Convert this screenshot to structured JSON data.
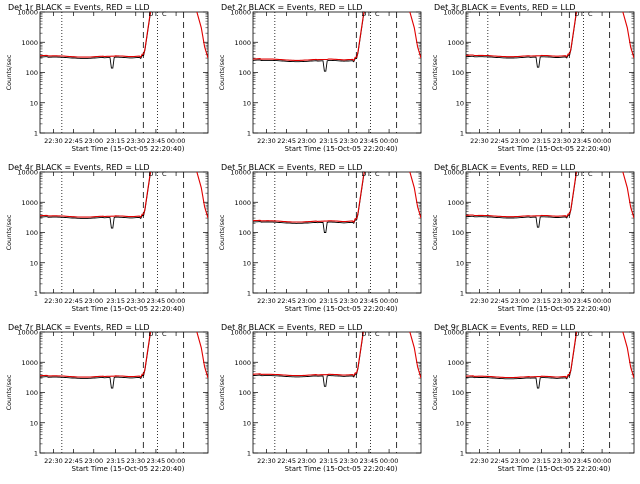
{
  "chart_data": [
    {
      "type": "line",
      "title": "Det 1r  BLACK = Events, RED = LLD",
      "xlabel": "Start Time (15-Oct-05 22:20:40)",
      "ylabel": "Counts/sec",
      "yscale": "log",
      "ylim": [
        1,
        10000
      ],
      "y_ticks": [
        "1",
        "10",
        "100",
        "1000",
        "10000"
      ],
      "x_ticks": [
        "22:30",
        "22:45",
        "23:00",
        "23:15",
        "23:30",
        "23:45",
        "00:00"
      ],
      "series": [
        {
          "color": "#000000"
        },
        {
          "color": "#e00000"
        }
      ],
      "annotations": [
        "D",
        "C"
      ],
      "base": 320,
      "dip": 140,
      "rise": 380
    },
    {
      "type": "line",
      "title": "Det 2r  BLACK = Events, RED = LLD",
      "xlabel": "Start Time (15-Oct-05 22:20:40)",
      "ylabel": "Counts/sec",
      "yscale": "log",
      "ylim": [
        1,
        10000
      ],
      "y_ticks": [
        "1",
        "10",
        "100",
        "1000",
        "10000"
      ],
      "x_ticks": [
        "22:30",
        "22:45",
        "23:00",
        "23:15",
        "23:30",
        "23:45",
        "00:00"
      ],
      "series": [
        {
          "color": "#000000"
        },
        {
          "color": "#e00000"
        }
      ],
      "annotations": [
        "D",
        "C"
      ],
      "base": 250,
      "dip": 110,
      "rise": 300
    },
    {
      "type": "line",
      "title": "Det 3r  BLACK = Events, RED = LLD",
      "xlabel": "Start Time (15-Oct-05 22:20:40)",
      "ylabel": "Counts/sec",
      "yscale": "log",
      "ylim": [
        1,
        10000
      ],
      "y_ticks": [
        "1",
        "10",
        "100",
        "1000",
        "10000"
      ],
      "x_ticks": [
        "22:30",
        "22:45",
        "23:00",
        "23:15",
        "23:30",
        "23:45",
        "00:00"
      ],
      "series": [
        {
          "color": "#000000"
        },
        {
          "color": "#e00000"
        }
      ],
      "annotations": [
        "D",
        "C"
      ],
      "base": 330,
      "dip": 150,
      "rise": 390
    },
    {
      "type": "line",
      "title": "Det 4r  BLACK = Events, RED = LLD",
      "xlabel": "Start Time (15-Oct-05 22:20:40)",
      "ylabel": "Counts/sec",
      "yscale": "log",
      "ylim": [
        1,
        10000
      ],
      "y_ticks": [
        "1",
        "10",
        "100",
        "1000",
        "10000"
      ],
      "x_ticks": [
        "22:30",
        "22:45",
        "23:00",
        "23:15",
        "23:30",
        "23:45",
        "00:00"
      ],
      "series": [
        {
          "color": "#000000"
        },
        {
          "color": "#e00000"
        }
      ],
      "annotations": [
        "D",
        "C"
      ],
      "base": 320,
      "dip": 140,
      "rise": 380
    },
    {
      "type": "line",
      "title": "Det 5r  BLACK = Events, RED = LLD",
      "xlabel": "Start Time (15-Oct-05 22:20:40)",
      "ylabel": "Counts/sec",
      "yscale": "log",
      "ylim": [
        1,
        10000
      ],
      "y_ticks": [
        "1",
        "10",
        "100",
        "1000",
        "10000"
      ],
      "x_ticks": [
        "22:30",
        "22:45",
        "23:00",
        "23:15",
        "23:30",
        "23:45",
        "00:00"
      ],
      "series": [
        {
          "color": "#000000"
        },
        {
          "color": "#e00000"
        }
      ],
      "annotations": [
        "D",
        "C"
      ],
      "base": 220,
      "dip": 100,
      "rise": 270
    },
    {
      "type": "line",
      "title": "Det 6r  BLACK = Events, RED = LLD",
      "xlabel": "Start Time (15-Oct-05 22:20:40)",
      "ylabel": "Counts/sec",
      "yscale": "log",
      "ylim": [
        1,
        10000
      ],
      "y_ticks": [
        "1",
        "10",
        "100",
        "1000",
        "10000"
      ],
      "x_ticks": [
        "22:30",
        "22:45",
        "23:00",
        "23:15",
        "23:30",
        "23:45",
        "00:00"
      ],
      "series": [
        {
          "color": "#000000"
        },
        {
          "color": "#e00000"
        }
      ],
      "annotations": [
        "D",
        "C"
      ],
      "base": 330,
      "dip": 150,
      "rise": 390
    },
    {
      "type": "line",
      "title": "Det 7r  BLACK = Events, RED = LLD",
      "xlabel": "Start Time (15-Oct-05 22:20:40)",
      "ylabel": "Counts/sec",
      "yscale": "log",
      "ylim": [
        1,
        10000
      ],
      "y_ticks": [
        "1",
        "10",
        "100",
        "1000",
        "10000"
      ],
      "x_ticks": [
        "22:30",
        "22:45",
        "23:00",
        "23:15",
        "23:30",
        "23:45",
        "00:00"
      ],
      "series": [
        {
          "color": "#000000"
        },
        {
          "color": "#e00000"
        }
      ],
      "annotations": [
        "D",
        "C"
      ],
      "base": 320,
      "dip": 140,
      "rise": 380
    },
    {
      "type": "line",
      "title": "Det 8r  BLACK = Events, RED = LLD",
      "xlabel": "Start Time (15-Oct-05 22:20:40)",
      "ylabel": "Counts/sec",
      "yscale": "log",
      "ylim": [
        1,
        10000
      ],
      "y_ticks": [
        "1",
        "10",
        "100",
        "1000",
        "10000"
      ],
      "x_ticks": [
        "22:30",
        "22:45",
        "23:00",
        "23:15",
        "23:30",
        "23:45",
        "00:00"
      ],
      "series": [
        {
          "color": "#000000"
        },
        {
          "color": "#e00000"
        }
      ],
      "annotations": [
        "D",
        "C"
      ],
      "base": 360,
      "dip": 160,
      "rise": 420
    },
    {
      "type": "line",
      "title": "Det 9r  BLACK = Events, RED = LLD",
      "xlabel": "Start Time (15-Oct-05 22:20:40)",
      "ylabel": "Counts/sec",
      "yscale": "log",
      "ylim": [
        1,
        10000
      ],
      "y_ticks": [
        "1",
        "10",
        "100",
        "1000",
        "10000"
      ],
      "x_ticks": [
        "22:30",
        "22:45",
        "23:00",
        "23:15",
        "23:30",
        "23:45",
        "00:00"
      ],
      "series": [
        {
          "color": "#000000"
        },
        {
          "color": "#e00000"
        }
      ],
      "annotations": [
        "D",
        "C"
      ],
      "base": 310,
      "dip": 140,
      "rise": 370
    }
  ]
}
